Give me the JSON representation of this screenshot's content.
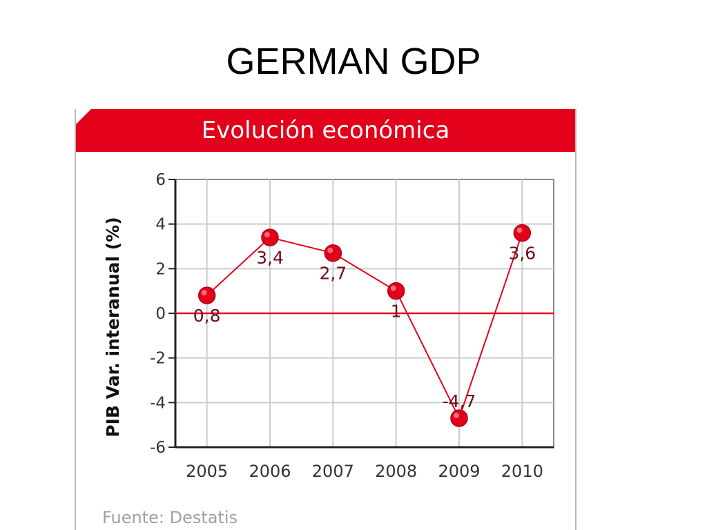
{
  "slide": {
    "title": "GERMAN GDP"
  },
  "card": {
    "header_title": "Evolución económica",
    "source": "Fuente: Destatis"
  },
  "chart_data": {
    "type": "line",
    "title": "Evolución económica",
    "xlabel": "",
    "ylabel": "PIB Var. interanual (%)",
    "categories": [
      "2005",
      "2006",
      "2007",
      "2008",
      "2009",
      "2010"
    ],
    "series": [
      {
        "values": [
          0.8,
          3.4,
          2.7,
          1,
          -4.7,
          3.6
        ],
        "labels": [
          "0,8",
          "3,4",
          "2,7",
          "1",
          "-4,7",
          "3,6"
        ]
      }
    ],
    "ylim": [
      -6,
      6
    ],
    "yticks": [
      6,
      4,
      2,
      0,
      -2,
      -4,
      -6
    ],
    "grid": true,
    "zero_line": true,
    "colors": {
      "line": "#e3001b",
      "marker": "#e3001b",
      "label": "#6b0f1a",
      "grid": "#cccccc",
      "axis": "#555555"
    }
  }
}
